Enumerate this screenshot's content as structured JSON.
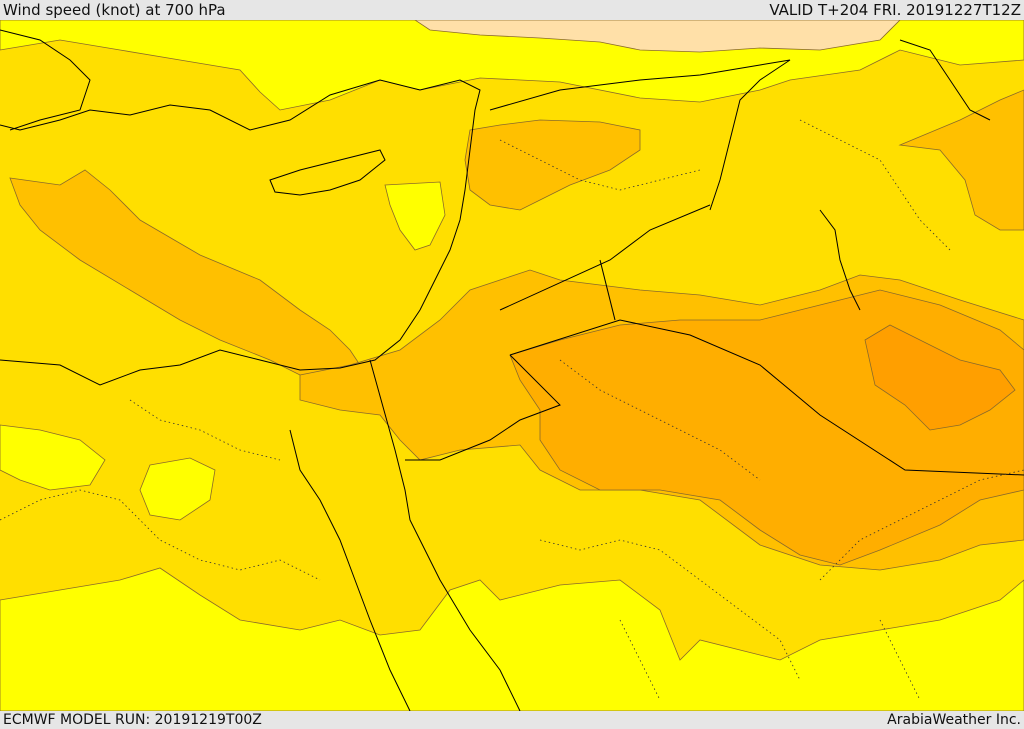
{
  "header": {
    "title": "Wind speed (knot) at 700 hPa",
    "valid": "VALID T+204 FRI. 20191227T12Z"
  },
  "footer": {
    "model_run": "ECMWF MODEL RUN: 20191219T00Z",
    "credit": "ArabiaWeather Inc."
  },
  "map": {
    "colors": {
      "lightest": "#ffff00",
      "level1": "#ffdf00",
      "level2": "#ffc000",
      "level3": "#ffae00",
      "level4": "#ff9f00",
      "peach": "#ffe0a8",
      "border": "#000000",
      "contour": "#8a6a2a"
    }
  }
}
